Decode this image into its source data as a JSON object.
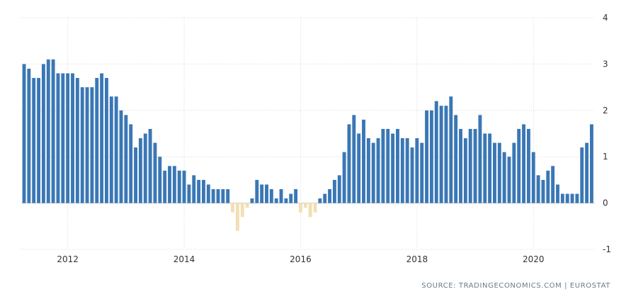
{
  "chart_data": {
    "type": "bar",
    "title": "",
    "xlabel": "",
    "ylabel": "",
    "ylim": [
      -1,
      4
    ],
    "y_ticks": [
      4,
      3,
      2,
      1,
      0,
      -1
    ],
    "x_ticks": [
      {
        "label": "2012",
        "date": "2012-01"
      },
      {
        "label": "2014",
        "date": "2014-01"
      },
      {
        "label": "2016",
        "date": "2016-01"
      },
      {
        "label": "2018",
        "date": "2018-01"
      },
      {
        "label": "2020",
        "date": "2020-01"
      }
    ],
    "grid": true,
    "legend": "none",
    "positive_color": "#3a77b5",
    "negative_color": "#f2dfb4",
    "start_month": "2011-04",
    "values": [
      3.0,
      2.9,
      2.7,
      2.7,
      3.0,
      3.1,
      3.1,
      2.8,
      2.8,
      2.8,
      2.8,
      2.7,
      2.5,
      2.5,
      2.5,
      2.7,
      2.8,
      2.7,
      2.3,
      2.3,
      2.0,
      1.9,
      1.7,
      1.2,
      1.4,
      1.5,
      1.6,
      1.3,
      1.0,
      0.7,
      0.8,
      0.8,
      0.7,
      0.7,
      0.4,
      0.6,
      0.5,
      0.5,
      0.4,
      0.3,
      0.3,
      0.3,
      0.3,
      -0.2,
      -0.6,
      -0.3,
      -0.1,
      0.1,
      0.5,
      0.4,
      0.4,
      0.3,
      0.1,
      0.3,
      0.1,
      0.2,
      0.3,
      -0.2,
      -0.1,
      -0.3,
      -0.2,
      0.1,
      0.2,
      0.3,
      0.5,
      0.6,
      1.1,
      1.7,
      1.9,
      1.5,
      1.8,
      1.4,
      1.3,
      1.4,
      1.6,
      1.6,
      1.5,
      1.6,
      1.4,
      1.4,
      1.2,
      1.4,
      1.3,
      2.0,
      2.0,
      2.2,
      2.1,
      2.1,
      2.3,
      1.9,
      1.6,
      1.4,
      1.6,
      1.6,
      1.9,
      1.5,
      1.5,
      1.3,
      1.3,
      1.1,
      1.0,
      1.3,
      1.6,
      1.7,
      1.6,
      1.1,
      0.6,
      0.5,
      0.7,
      0.8,
      0.4,
      0.2,
      0.2,
      0.2,
      0.2,
      1.2,
      1.3,
      1.7
    ]
  },
  "source": {
    "text": "SOURCE: TRADINGECONOMICS.COM | EUROSTAT"
  }
}
